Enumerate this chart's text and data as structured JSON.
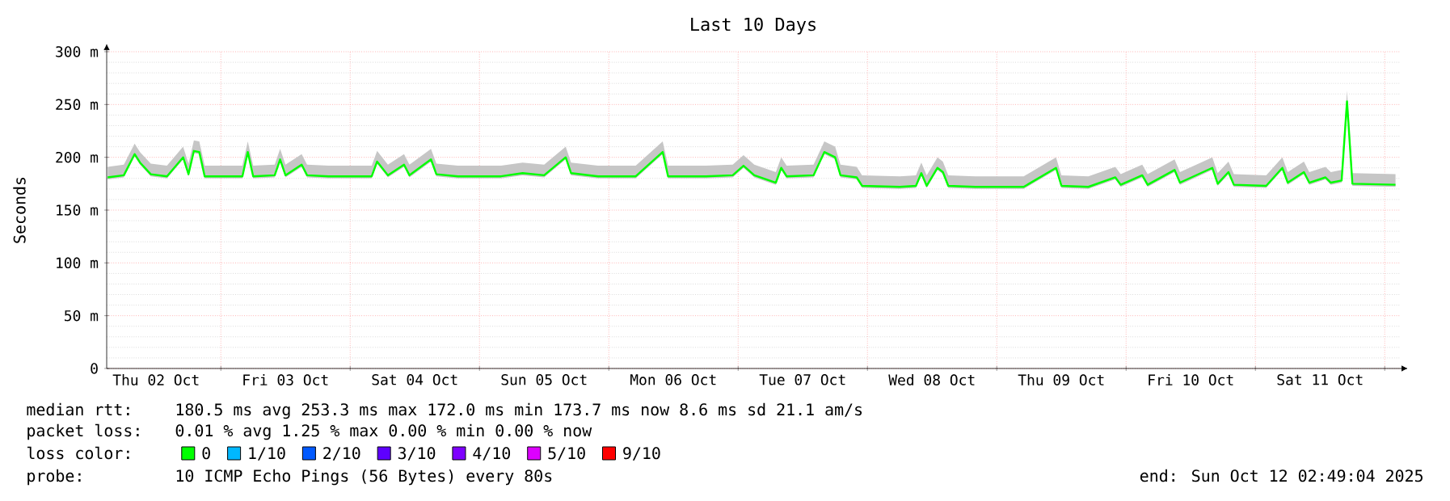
{
  "chart_data": {
    "type": "line",
    "title": "Last 10 Days",
    "ylabel": "Seconds",
    "legend_title": "loss color:",
    "legend": "bottom",
    "grid": true,
    "xlim": [
      "2025-10-02T02:49",
      "2025-10-12T02:49"
    ],
    "xticks": [
      {
        "value": "2025-10-02T12:00",
        "label": "Thu 02 Oct"
      },
      {
        "value": "2025-10-03T00:00",
        "label": null
      },
      {
        "value": "2025-10-03T12:00",
        "label": "Fri 03 Oct"
      },
      {
        "value": "2025-10-04T00:00",
        "label": null
      },
      {
        "value": "2025-10-04T12:00",
        "label": "Sat 04 Oct"
      },
      {
        "value": "2025-10-05T00:00",
        "label": null
      },
      {
        "value": "2025-10-05T12:00",
        "label": "Sun 05 Oct"
      },
      {
        "value": "2025-10-06T00:00",
        "label": null
      },
      {
        "value": "2025-10-06T12:00",
        "label": "Mon 06 Oct"
      },
      {
        "value": "2025-10-07T00:00",
        "label": null
      },
      {
        "value": "2025-10-07T12:00",
        "label": "Tue 07 Oct"
      },
      {
        "value": "2025-10-08T00:00",
        "label": null
      },
      {
        "value": "2025-10-08T12:00",
        "label": "Wed 08 Oct"
      },
      {
        "value": "2025-10-09T00:00",
        "label": null
      },
      {
        "value": "2025-10-09T12:00",
        "label": "Thu 09 Oct"
      },
      {
        "value": "2025-10-10T00:00",
        "label": null
      },
      {
        "value": "2025-10-10T12:00",
        "label": "Fri 10 Oct"
      },
      {
        "value": "2025-10-11T00:00",
        "label": null
      },
      {
        "value": "2025-10-11T12:00",
        "label": "Sat 11 Oct"
      },
      {
        "value": "2025-10-12T00:00",
        "label": null
      }
    ],
    "ylim": [
      0,
      300
    ],
    "yticks": [
      0,
      {
        "value": 50,
        "label": "50 m"
      },
      {
        "value": 100,
        "label": "100 m"
      },
      {
        "value": 150,
        "label": "150 m"
      },
      {
        "value": 200,
        "label": "200 m"
      },
      {
        "value": 250,
        "label": "250 m"
      },
      {
        "value": 300,
        "label": "300 m"
      }
    ],
    "annotations": [
      "median rtt:",
      "180.5 ms avg  253.3 ms max  172.0 ms min  173.7 ms now  8.6 ms sd  21.1   am/s",
      "packet loss:",
      "0.01 % avg  1.25 % max  0.00 % min  0.00 % now",
      "probe:",
      "10 ICMP Echo Pings (56 Bytes) every 80s",
      "end: Sun Oct 12 02:49:04 2025"
    ],
    "series": [
      {
        "name": "0",
        "color": "#00ff00",
        "x": [
          "2025-10-02T03:00",
          "2025-10-02T06:00",
          "2025-10-02T08:00",
          "2025-10-02T09:00",
          "2025-10-02T11:00",
          "2025-10-02T14:00",
          "2025-10-02T17:00",
          "2025-10-02T18:00",
          "2025-10-02T19:00",
          "2025-10-02T20:00",
          "2025-10-02T21:00",
          "2025-10-03T04:00",
          "2025-10-03T05:00",
          "2025-10-03T06:00",
          "2025-10-03T10:00",
          "2025-10-03T11:00",
          "2025-10-03T12:00",
          "2025-10-03T15:00",
          "2025-10-03T16:00",
          "2025-10-03T20:00",
          "2025-10-04T04:00",
          "2025-10-04T05:00",
          "2025-10-04T07:00",
          "2025-10-04T10:00",
          "2025-10-04T11:00",
          "2025-10-04T15:00",
          "2025-10-04T16:00",
          "2025-10-04T20:00",
          "2025-10-05T04:00",
          "2025-10-05T08:00",
          "2025-10-05T12:00",
          "2025-10-05T16:00",
          "2025-10-05T17:00",
          "2025-10-05T22:00",
          "2025-10-06T05:00",
          "2025-10-06T10:00",
          "2025-10-06T11:00",
          "2025-10-06T18:00",
          "2025-10-06T23:00",
          "2025-10-07T01:00",
          "2025-10-07T03:00",
          "2025-10-07T07:00",
          "2025-10-07T08:00",
          "2025-10-07T09:00",
          "2025-10-07T14:00",
          "2025-10-07T16:00",
          "2025-10-07T18:00",
          "2025-10-07T19:00",
          "2025-10-07T22:00",
          "2025-10-07T23:00",
          "2025-10-08T06:00",
          "2025-10-08T09:00",
          "2025-10-08T10:00",
          "2025-10-08T11:00",
          "2025-10-08T13:00",
          "2025-10-08T14:00",
          "2025-10-08T15:00",
          "2025-10-08T20:00",
          "2025-10-09T05:00",
          "2025-10-09T11:00",
          "2025-10-09T12:00",
          "2025-10-09T17:00",
          "2025-10-09T22:00",
          "2025-10-09T23:00",
          "2025-10-10T03:00",
          "2025-10-10T04:00",
          "2025-10-10T09:00",
          "2025-10-10T10:00",
          "2025-10-10T16:00",
          "2025-10-10T17:00",
          "2025-10-10T19:00",
          "2025-10-10T20:00",
          "2025-10-11T02:00",
          "2025-10-11T05:00",
          "2025-10-11T06:00",
          "2025-10-11T09:00",
          "2025-10-11T10:00",
          "2025-10-11T13:00",
          "2025-10-11T14:00",
          "2025-10-11T16:00",
          "2025-10-11T17:00",
          "2025-10-11T18:00",
          "2025-10-12T02:00"
        ],
        "values": [
          181,
          183,
          203,
          195,
          184,
          182,
          200,
          184,
          206,
          205,
          182,
          182,
          205,
          182,
          183,
          198,
          183,
          193,
          183,
          182,
          182,
          196,
          183,
          193,
          183,
          198,
          184,
          182,
          182,
          185,
          183,
          200,
          185,
          182,
          182,
          205,
          182,
          182,
          183,
          192,
          183,
          176,
          190,
          182,
          183,
          205,
          200,
          183,
          181,
          173,
          172,
          173,
          185,
          173,
          190,
          186,
          173,
          172,
          172,
          190,
          173,
          172,
          181,
          174,
          183,
          174,
          188,
          176,
          190,
          175,
          186,
          174,
          173,
          190,
          176,
          186,
          176,
          181,
          176,
          178,
          253,
          175,
          174
        ],
        "lower": [
          179,
          181,
          201,
          193,
          182,
          180,
          198,
          182,
          204,
          203,
          180,
          180,
          203,
          180,
          181,
          196,
          181,
          191,
          181,
          180,
          180,
          194,
          181,
          191,
          181,
          196,
          182,
          180,
          180,
          183,
          181,
          198,
          183,
          180,
          180,
          203,
          180,
          180,
          181,
          190,
          181,
          174,
          188,
          180,
          181,
          203,
          198,
          181,
          179,
          171,
          170,
          171,
          183,
          171,
          188,
          184,
          171,
          170,
          170,
          188,
          171,
          170,
          179,
          172,
          181,
          172,
          186,
          174,
          188,
          173,
          184,
          172,
          171,
          188,
          174,
          184,
          174,
          179,
          174,
          176,
          251,
          173,
          172
        ],
        "upper": [
          191,
          193,
          213,
          205,
          194,
          192,
          210,
          194,
          216,
          215,
          192,
          192,
          215,
          192,
          193,
          208,
          193,
          203,
          193,
          192,
          192,
          206,
          193,
          203,
          193,
          208,
          194,
          192,
          192,
          195,
          193,
          210,
          195,
          192,
          192,
          215,
          192,
          192,
          193,
          202,
          193,
          186,
          200,
          192,
          193,
          215,
          210,
          193,
          191,
          183,
          182,
          183,
          195,
          183,
          200,
          196,
          183,
          182,
          182,
          200,
          183,
          182,
          191,
          184,
          193,
          184,
          198,
          186,
          200,
          185,
          196,
          184,
          183,
          200,
          186,
          196,
          186,
          191,
          186,
          188,
          263,
          185,
          184
        ]
      },
      {
        "name": "1/10",
        "color": "#00b8ff"
      },
      {
        "name": "2/10",
        "color": "#0059ff"
      },
      {
        "name": "3/10",
        "color": "#5e00ff"
      },
      {
        "name": "4/10",
        "color": "#7e00ff"
      },
      {
        "name": "5/10",
        "color": "#dd00ff"
      },
      {
        "name": "9/10",
        "color": "#ff0000"
      }
    ]
  }
}
